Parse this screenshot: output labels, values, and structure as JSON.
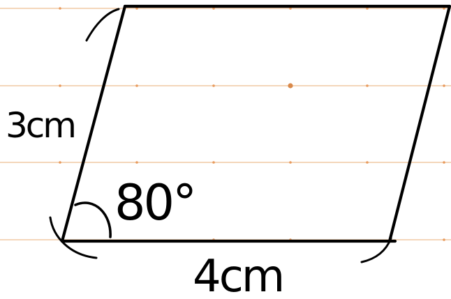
{
  "diagram": {
    "labels": {
      "side_left": "3cm",
      "side_bottom": "4cm",
      "angle": "80°"
    },
    "colors": {
      "ink": "#000000",
      "ruled_line": "#f0c9a4",
      "ruled_dot": "#e89a5c",
      "background": "#ffffff"
    }
  }
}
